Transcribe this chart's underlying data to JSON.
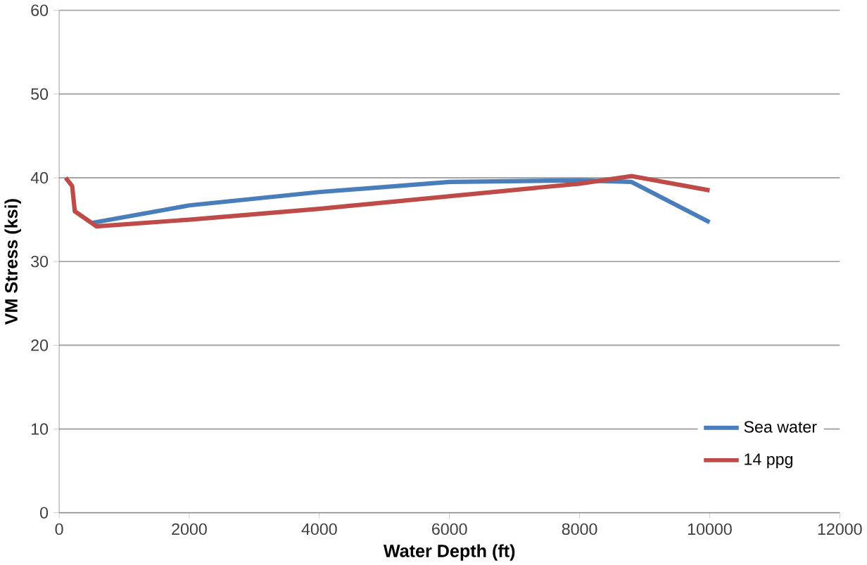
{
  "chart_data": {
    "type": "line",
    "xlabel": "Water Depth (ft)",
    "ylabel": "VM Stress (ksi)",
    "xlim": [
      0,
      12000
    ],
    "xticks": [
      0,
      2000,
      4000,
      6000,
      8000,
      10000,
      12000
    ],
    "ylim": [
      0,
      60
    ],
    "yticks": [
      0,
      10,
      20,
      30,
      40,
      50,
      60
    ],
    "grid": "y",
    "legend": "bottom right",
    "marker": "none",
    "line_style": "solid",
    "series": [
      {
        "name": "Sea water",
        "color": "#4a7ebb",
        "x": [
          500,
          2000,
          4000,
          6000,
          8000,
          8800,
          10000
        ],
        "values": [
          34.6,
          36.7,
          38.3,
          39.5,
          39.7,
          39.5,
          34.7
        ]
      },
      {
        "name": "14 ppg",
        "color": "#be4b48",
        "x": [
          100,
          200,
          240,
          575,
          2000,
          4000,
          6000,
          8000,
          8800,
          10000
        ],
        "values": [
          40,
          39,
          36,
          34.2,
          35,
          36.3,
          37.8,
          39.3,
          40.2,
          38.5
        ]
      }
    ]
  }
}
